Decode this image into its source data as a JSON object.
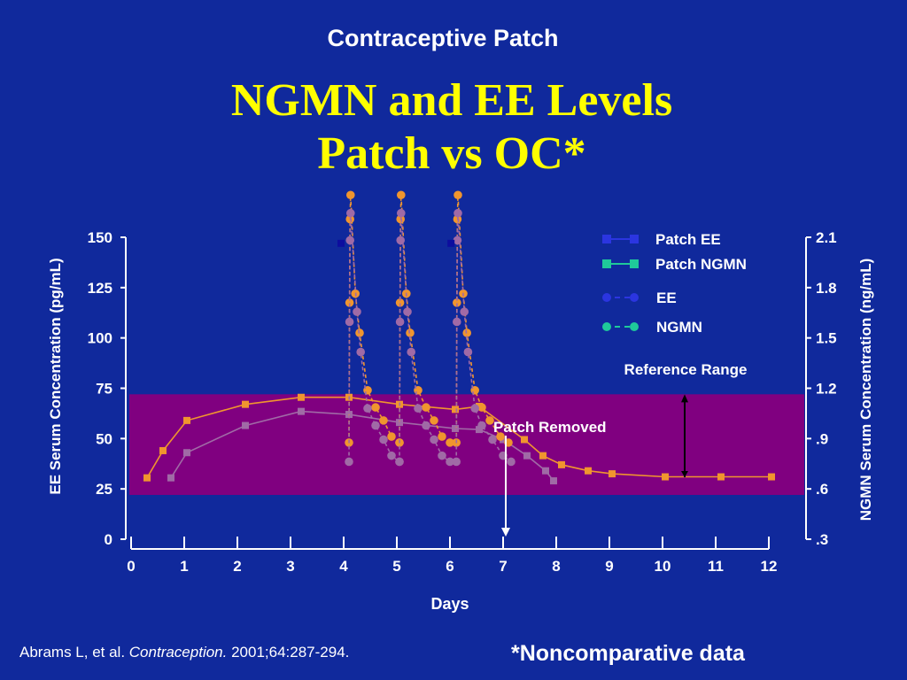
{
  "slide": {
    "subtitle": "Contraceptive Patch",
    "title_line1": "NGMN and EE Levels",
    "title_line2": "Patch vs OC*"
  },
  "footer": {
    "citation_prefix": "Abrams L, et al. ",
    "citation_journal": "Contraception.",
    "citation_suffix": " 2001;64:287-294.",
    "note": "*Noncomparative data"
  },
  "colors": {
    "background": "#10299c",
    "reference_band": "#800080",
    "orange": "#f0952e",
    "mauve": "#a06aa6",
    "legend_ee": "#2b35e0",
    "legend_ngmn": "#1fc99a",
    "title": "#ffff00"
  },
  "chart_data": {
    "type": "line",
    "xlabel": "Days",
    "ylabel_left": "EE Serum Concentration (pg/mL)",
    "ylabel_right": "NGMN Serum Concentration (ng/mL)",
    "x_ticks": [
      "0",
      "1",
      "2",
      "3",
      "4",
      "5",
      "6",
      "7",
      "8",
      "9",
      "10",
      "11",
      "12"
    ],
    "y_left_ticks": [
      "0",
      "25",
      "50",
      "75",
      "100",
      "125",
      "150"
    ],
    "y_right_ticks": [
      ".3",
      ".6",
      ".9",
      "1.2",
      "1.5",
      "1.8",
      "2.1"
    ],
    "xlim": [
      0,
      12
    ],
    "ylim_left": [
      0,
      150
    ],
    "ylim_right": [
      0.3,
      2.1
    ],
    "reference_range_left": [
      22,
      72
    ],
    "reference_label": "Reference Range",
    "annotation_patch_removed": {
      "text": "Patch Removed",
      "day": 7.05
    },
    "legend": [
      {
        "label": "Patch EE",
        "style": "solid-square",
        "color": "#2b35e0"
      },
      {
        "label": "Patch NGMN",
        "style": "solid-square",
        "color": "#1fc99a"
      },
      {
        "label": "EE",
        "style": "dashed-circle",
        "color": "#2b35e0"
      },
      {
        "label": "NGMN",
        "style": "dashed-circle",
        "color": "#1fc99a"
      }
    ],
    "series": [
      {
        "name": "Patch NGMN",
        "axis": "left",
        "color": "#f0952e",
        "style": "solid-square",
        "x": [
          0.3,
          0.6,
          1.05,
          2.15,
          3.2,
          4.1,
          5.05,
          6.1,
          6.55,
          7.4,
          7.75,
          8.1,
          8.6,
          9.05,
          10.05,
          11.1,
          12.05
        ],
        "y": [
          30.5,
          44,
          59,
          67,
          70.5,
          70.5,
          67,
          64.5,
          66,
          49.5,
          41.5,
          37,
          34,
          32.5,
          31,
          31,
          31
        ]
      },
      {
        "name": "Patch EE",
        "axis": "left",
        "color": "#a06aa6",
        "style": "solid-square",
        "x": [
          0.75,
          1.05,
          2.15,
          3.2,
          4.1,
          5.05,
          6.1,
          6.55,
          7.0,
          7.45,
          7.8,
          7.95
        ],
        "y": [
          30.5,
          43,
          56.5,
          63.5,
          62,
          58,
          55,
          54.5,
          49.5,
          41.5,
          34,
          29
        ]
      },
      {
        "name": "NGMN",
        "axis": "left",
        "color": "#f0952e",
        "style": "dashed-circle",
        "cycles": [
          {
            "x": [
              4.1,
              4.11,
              4.12,
              4.13,
              4.22,
              4.3,
              4.45,
              4.6,
              4.75,
              4.9,
              5.05
            ],
            "y": [
              48,
              117.5,
              159,
              171,
              122,
              102.5,
              74,
              65.5,
              59,
              51,
              48
            ]
          },
          {
            "x": [
              5.05,
              5.06,
              5.07,
              5.08,
              5.18,
              5.25,
              5.4,
              5.55,
              5.7,
              5.85,
              6.0
            ],
            "y": [
              48,
              117.5,
              159,
              171,
              122,
              102.5,
              74,
              65.5,
              59,
              51,
              48
            ]
          },
          {
            "x": [
              6.12,
              6.13,
              6.14,
              6.15,
              6.25,
              6.32,
              6.47,
              6.6,
              6.75,
              6.95,
              7.1
            ],
            "y": [
              48,
              117.5,
              159,
              171,
              122,
              102.5,
              74,
              65.5,
              59,
              51,
              48
            ]
          }
        ]
      },
      {
        "name": "EE",
        "axis": "left",
        "color": "#a06aa6",
        "style": "dashed-circle",
        "cycles": [
          {
            "x": [
              4.1,
              4.11,
              4.12,
              4.13,
              4.25,
              4.32,
              4.45,
              4.6,
              4.75,
              4.9,
              5.05
            ],
            "y": [
              38.5,
              108,
              148.5,
              162,
              113,
              93,
              65,
              56.5,
              49.5,
              41.5,
              38.5
            ]
          },
          {
            "x": [
              5.05,
              5.06,
              5.07,
              5.08,
              5.2,
              5.27,
              5.4,
              5.55,
              5.7,
              5.85,
              6.0
            ],
            "y": [
              38.5,
              108,
              148.5,
              162,
              113,
              93,
              65,
              56.5,
              49.5,
              41.5,
              38.5
            ]
          },
          {
            "x": [
              6.12,
              6.13,
              6.14,
              6.15,
              6.27,
              6.34,
              6.47,
              6.6,
              6.8,
              7.0,
              7.15
            ],
            "y": [
              38.5,
              108,
              148.5,
              162,
              113,
              93,
              65,
              56.5,
              49.5,
              41.5,
              38.5
            ]
          }
        ]
      },
      {
        "name": "Patch EE marker",
        "axis": "left",
        "color": "#0d0d9f",
        "style": "square-only",
        "x": [
          3.95,
          6.02
        ],
        "y": [
          147,
          147
        ]
      }
    ]
  }
}
